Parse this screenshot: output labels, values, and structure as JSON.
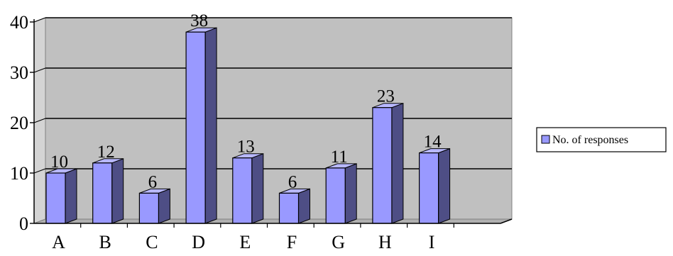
{
  "chart_data": {
    "type": "bar",
    "categories": [
      "A",
      "B",
      "C",
      "D",
      "E",
      "F",
      "G",
      "H",
      "I"
    ],
    "series": [
      {
        "name": "No. of responses",
        "values": [
          10,
          12,
          6,
          38,
          13,
          6,
          11,
          23,
          14
        ]
      }
    ],
    "title": "",
    "xlabel": "",
    "ylabel": "",
    "ylim": [
      0,
      40
    ],
    "yticks": [
      "0",
      "10",
      "20",
      "30",
      "40"
    ],
    "grid": true,
    "legend_position": "right",
    "three_d": true
  },
  "colors": {
    "plot_background": "#c0c0c0",
    "bar_front": "#9999ff",
    "bar_side": "#4e4e85",
    "bar_top": "#b8b8ff",
    "gridline": "#000000",
    "axis": "#000000"
  }
}
